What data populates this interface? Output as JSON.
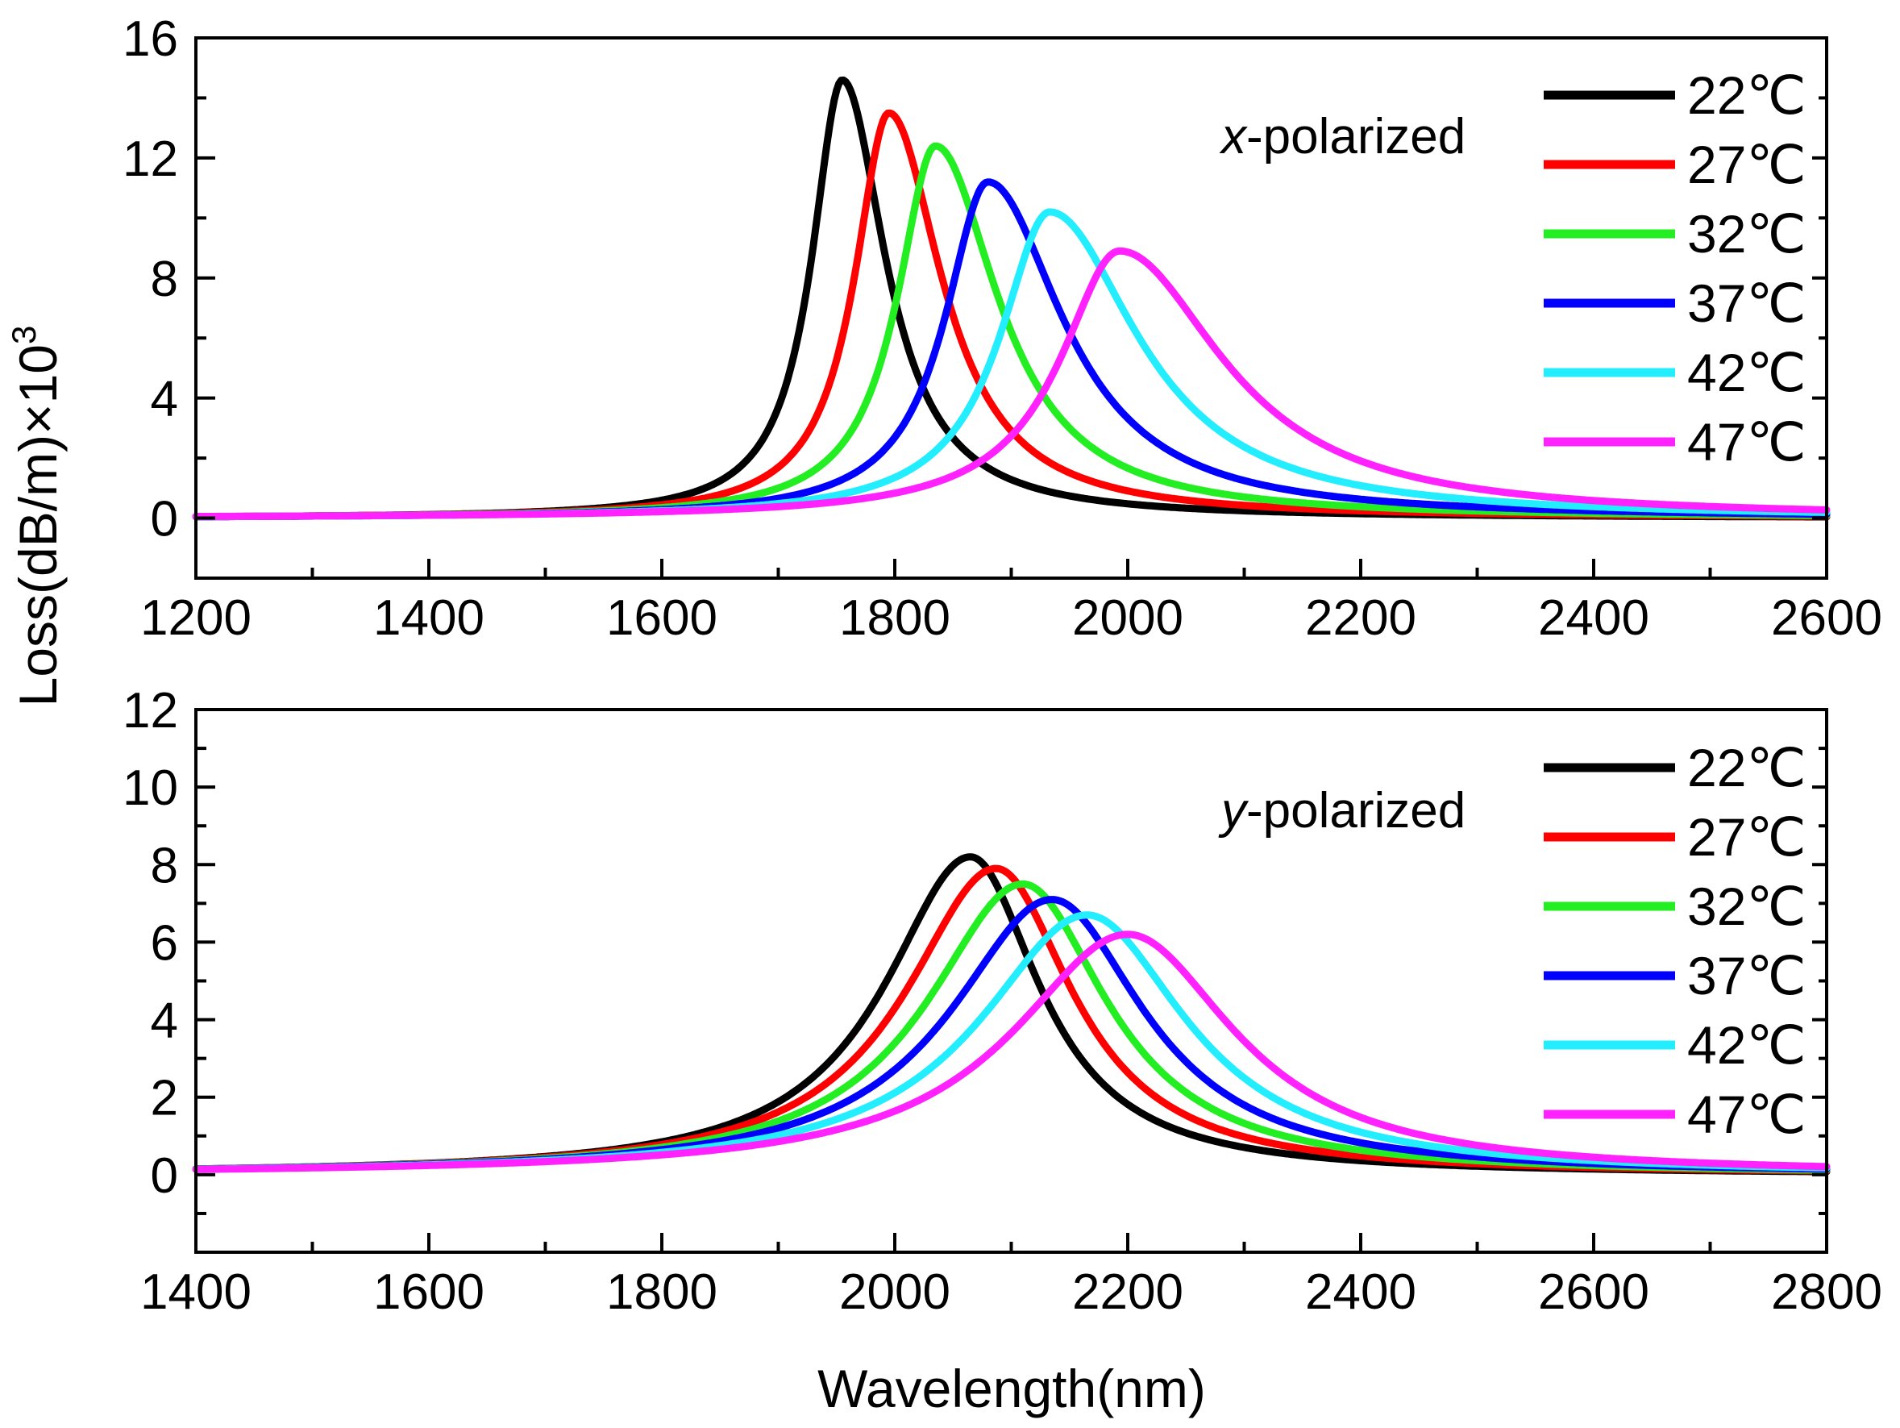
{
  "colors": {
    "22": "#000000",
    "27": "#ff0000",
    "32": "#22ee22",
    "37": "#0000ff",
    "42": "#22eeff",
    "47": "#ff22ff"
  },
  "chart_data": [
    {
      "type": "line",
      "panel": "top",
      "annotation": "x-polarized",
      "annotation_italic": "x",
      "annotation_rest": "-polarized",
      "xlabel": "Wavelength(nm)",
      "ylabel": "Loss(dB/m)×10",
      "ylabel_sup": "3",
      "xlim": [
        1200,
        2600
      ],
      "ylim": [
        -2,
        16
      ],
      "x_ticks": [
        1200,
        1400,
        1600,
        1800,
        2000,
        2200,
        2400,
        2600
      ],
      "x_tick_labels": [
        "1200",
        "1400",
        "1600",
        "1800",
        "2000",
        "2200",
        "2400",
        "2600"
      ],
      "y_ticks": [
        0,
        4,
        8,
        12,
        16
      ],
      "y_tick_labels": [
        "0",
        "4",
        "8",
        "12",
        "16"
      ],
      "x_minor_step": 100,
      "y_minor_step": 2,
      "legend_position": "top-right",
      "series": [
        {
          "name": "22℃",
          "key": "22",
          "peak_x": 1755,
          "peak_y": 14.6,
          "left_width": 32,
          "right_width": 45,
          "base": 0
        },
        {
          "name": "27℃",
          "key": "27",
          "peak_x": 1795,
          "peak_y": 13.5,
          "left_width": 36,
          "right_width": 55,
          "base": 0
        },
        {
          "name": "32℃",
          "key": "32",
          "peak_x": 1835,
          "peak_y": 12.4,
          "left_width": 40,
          "right_width": 65,
          "base": 0
        },
        {
          "name": "37℃",
          "key": "37",
          "peak_x": 1880,
          "peak_y": 11.2,
          "left_width": 45,
          "right_width": 78,
          "base": 0
        },
        {
          "name": "42℃",
          "key": "42",
          "peak_x": 1933,
          "peak_y": 10.2,
          "left_width": 52,
          "right_width": 92,
          "base": 0
        },
        {
          "name": "47℃",
          "key": "47",
          "peak_x": 1993,
          "peak_y": 8.9,
          "left_width": 62,
          "right_width": 108,
          "base": 0
        }
      ]
    },
    {
      "type": "line",
      "panel": "bottom",
      "annotation": "y-polarized",
      "annotation_italic": "y",
      "annotation_rest": "-polarized",
      "xlabel": "Wavelength(nm)",
      "xlim": [
        1400,
        2800
      ],
      "ylim": [
        -2,
        12
      ],
      "x_ticks": [
        1400,
        1600,
        1800,
        2000,
        2200,
        2400,
        2600,
        2800
      ],
      "x_tick_labels": [
        "1400",
        "1600",
        "1800",
        "2000",
        "2200",
        "2400",
        "2600",
        "2800"
      ],
      "y_ticks": [
        0,
        2,
        4,
        6,
        8,
        10,
        12
      ],
      "y_tick_labels": [
        "0",
        "2",
        "4",
        "6",
        "8",
        "10",
        "12"
      ],
      "x_minor_step": 100,
      "y_minor_step": 1,
      "legend_position": "top-right",
      "series": [
        {
          "name": "22℃",
          "key": "22",
          "peak_x": 2065,
          "peak_y": 8.2,
          "left_width": 90,
          "right_width": 72,
          "base": 0
        },
        {
          "name": "27℃",
          "key": "27",
          "peak_x": 2087,
          "peak_y": 7.9,
          "left_width": 95,
          "right_width": 80,
          "base": 0
        },
        {
          "name": "32℃",
          "key": "32",
          "peak_x": 2110,
          "peak_y": 7.5,
          "left_width": 100,
          "right_width": 88,
          "base": 0
        },
        {
          "name": "37℃",
          "key": "37",
          "peak_x": 2135,
          "peak_y": 7.1,
          "left_width": 106,
          "right_width": 96,
          "base": 0
        },
        {
          "name": "42℃",
          "key": "42",
          "peak_x": 2165,
          "peak_y": 6.7,
          "left_width": 112,
          "right_width": 104,
          "base": 0
        },
        {
          "name": "47℃",
          "key": "47",
          "peak_x": 2200,
          "peak_y": 6.2,
          "left_width": 120,
          "right_width": 112,
          "base": 0
        }
      ]
    }
  ]
}
